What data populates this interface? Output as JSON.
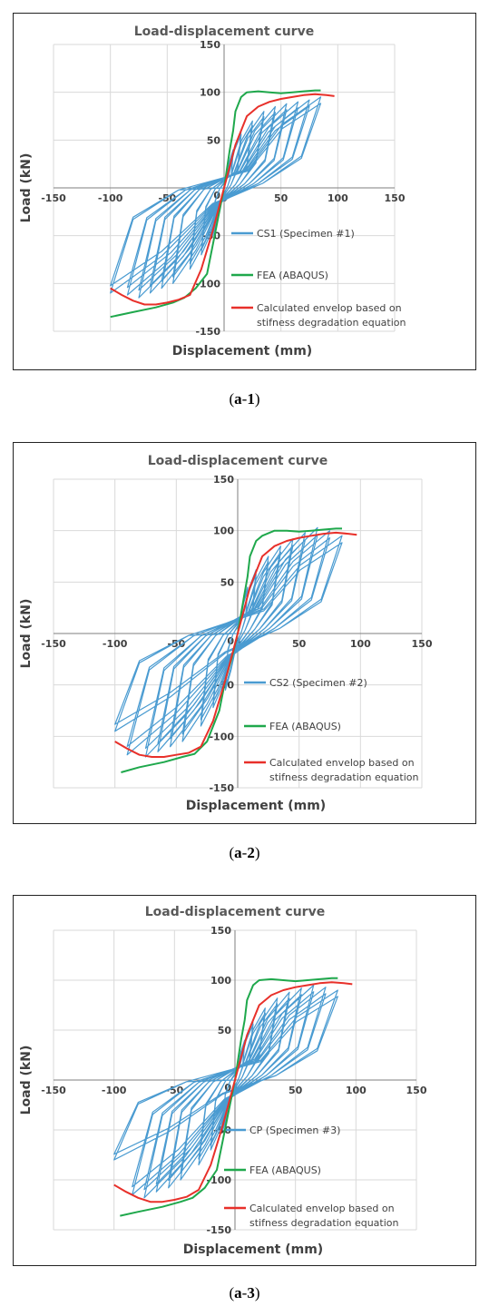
{
  "chart_data": [
    {
      "type": "line",
      "title": "Load-displacement curve",
      "xlabel": "Displacement (mm)",
      "ylabel": "Load (kN)",
      "xlim": [
        -150,
        150
      ],
      "ylim": [
        -150,
        150
      ],
      "xticks": [
        "-150",
        "-100",
        "-50",
        "0",
        "50",
        "100",
        "150"
      ],
      "yticks": [
        "150",
        "100",
        "50",
        "0",
        "-50",
        "-100",
        "-150"
      ],
      "grid": true,
      "legend_position": "right",
      "series": [
        {
          "name": "CS1 (Specimen #1)",
          "color": "#4a9bd1",
          "kind": "hysteresis",
          "amplitudes": [
            8,
            15,
            25,
            35,
            45,
            55,
            65,
            75,
            85
          ],
          "peak_pos": [
            40,
            60,
            70,
            80,
            85,
            88,
            90,
            92,
            95
          ],
          "peak_neg": [
            -50,
            -70,
            -85,
            -100,
            -105,
            -110,
            -115,
            -112,
            -110
          ],
          "neg_amplitudes": [
            -10,
            -20,
            -30,
            -45,
            -55,
            -65,
            -75,
            -85,
            -100
          ],
          "pinch": 0.2
        },
        {
          "name": "FEA (ABAQUS)",
          "color": "#1fa84c",
          "x": [
            -100,
            -80,
            -60,
            -45,
            -35,
            -25,
            -15,
            -10,
            -5,
            0,
            5,
            8,
            10,
            15,
            20,
            30,
            40,
            50,
            60,
            70,
            80,
            85
          ],
          "y": [
            -135,
            -130,
            -125,
            -120,
            -115,
            -105,
            -90,
            -60,
            -30,
            0,
            40,
            60,
            80,
            95,
            100,
            101,
            100,
            99,
            100,
            101,
            102,
            102
          ]
        },
        {
          "name": "Calculated envelop based on stifness degradation equation",
          "color": "#e8302a",
          "x": [
            -100,
            -90,
            -80,
            -70,
            -60,
            -50,
            -40,
            -30,
            -20,
            -10,
            0,
            10,
            20,
            30,
            40,
            50,
            60,
            70,
            80,
            90,
            97
          ],
          "y": [
            -105,
            -112,
            -118,
            -122,
            -122,
            -120,
            -117,
            -112,
            -85,
            -45,
            0,
            45,
            75,
            85,
            90,
            93,
            95,
            97,
            98,
            97,
            96
          ]
        }
      ],
      "caption": "a-1"
    },
    {
      "type": "line",
      "title": "Load-displacement curve",
      "xlabel": "Displacement (mm)",
      "ylabel": "Load (kN)",
      "xlim": [
        -150,
        150
      ],
      "ylim": [
        -150,
        150
      ],
      "xticks": [
        "-150",
        "-100",
        "-50",
        "0",
        "50",
        "100",
        "150"
      ],
      "yticks": [
        "150",
        "100",
        "50",
        "0",
        "-50",
        "-100",
        "-150"
      ],
      "grid": true,
      "legend_position": "right",
      "series": [
        {
          "name": "CS2 (Specimen #2)",
          "color": "#4a9bd1",
          "kind": "hysteresis",
          "amplitudes": [
            8,
            15,
            25,
            35,
            45,
            55,
            65,
            75,
            85
          ],
          "peak_pos": [
            45,
            62,
            75,
            85,
            92,
            98,
            103,
            100,
            95
          ],
          "peak_neg": [
            -55,
            -72,
            -90,
            -105,
            -110,
            -115,
            -120,
            -118,
            -95
          ],
          "neg_amplitudes": [
            -10,
            -20,
            -30,
            -45,
            -55,
            -65,
            -75,
            -90,
            -100
          ],
          "pinch": 0.25
        },
        {
          "name": "FEA (ABAQUS)",
          "color": "#1fa84c",
          "x": [
            -95,
            -80,
            -60,
            -45,
            -35,
            -25,
            -15,
            -10,
            -5,
            0,
            5,
            8,
            10,
            15,
            20,
            30,
            40,
            50,
            60,
            70,
            80,
            85
          ],
          "y": [
            -135,
            -130,
            -125,
            -120,
            -117,
            -105,
            -75,
            -45,
            -25,
            0,
            35,
            55,
            75,
            90,
            95,
            100,
            100,
            99,
            100,
            101,
            102,
            102
          ]
        },
        {
          "name": "Calculated envelop based on stifness degradation equation",
          "color": "#e8302a",
          "x": [
            -100,
            -90,
            -80,
            -70,
            -60,
            -50,
            -40,
            -30,
            -20,
            -10,
            0,
            10,
            20,
            30,
            40,
            50,
            60,
            70,
            80,
            90,
            97
          ],
          "y": [
            -105,
            -112,
            -118,
            -120,
            -120,
            -118,
            -116,
            -110,
            -85,
            -45,
            0,
            45,
            75,
            85,
            90,
            93,
            95,
            97,
            98,
            97,
            96
          ]
        }
      ],
      "caption": "a-2"
    },
    {
      "type": "line",
      "title": "Load-displacement curve",
      "xlabel": "Displacement (mm)",
      "ylabel": "Load (kN)",
      "xlim": [
        -150,
        150
      ],
      "ylim": [
        -150,
        150
      ],
      "xticks": [
        "-150",
        "-100",
        "-50",
        "0",
        "50",
        "100",
        "150"
      ],
      "yticks": [
        "150",
        "100",
        "50",
        "0",
        "-50",
        "-100",
        "-150"
      ],
      "grid": true,
      "legend_position": "right",
      "series": [
        {
          "name": "CP (Specimen #3)",
          "color": "#4a9bd1",
          "kind": "hysteresis",
          "amplitudes": [
            8,
            15,
            25,
            35,
            45,
            55,
            65,
            75,
            85
          ],
          "peak_pos": [
            40,
            60,
            72,
            82,
            88,
            92,
            95,
            93,
            90
          ],
          "peak_neg": [
            -50,
            -70,
            -85,
            -100,
            -108,
            -112,
            -118,
            -115,
            -80
          ],
          "neg_amplitudes": [
            -10,
            -20,
            -30,
            -45,
            -55,
            -65,
            -75,
            -85,
            -100
          ],
          "pinch": 0.22
        },
        {
          "name": "FEA (ABAQUS)",
          "color": "#1fa84c",
          "x": [
            -95,
            -80,
            -60,
            -45,
            -35,
            -25,
            -15,
            -10,
            -5,
            0,
            5,
            8,
            10,
            15,
            20,
            30,
            40,
            50,
            60,
            70,
            80,
            85
          ],
          "y": [
            -136,
            -132,
            -127,
            -122,
            -118,
            -108,
            -90,
            -60,
            -30,
            0,
            40,
            60,
            80,
            95,
            100,
            101,
            100,
            99,
            100,
            101,
            102,
            102
          ]
        },
        {
          "name": "Calculated envelop based on stifness degradation equation",
          "color": "#e8302a",
          "x": [
            -100,
            -90,
            -80,
            -70,
            -60,
            -50,
            -40,
            -30,
            -20,
            -10,
            0,
            10,
            20,
            30,
            40,
            50,
            60,
            70,
            80,
            90,
            97
          ],
          "y": [
            -105,
            -112,
            -118,
            -122,
            -122,
            -120,
            -117,
            -110,
            -85,
            -45,
            0,
            45,
            75,
            85,
            90,
            93,
            95,
            97,
            98,
            97,
            96
          ]
        }
      ],
      "caption": "a-3"
    }
  ],
  "captions": [
    {
      "letter": "a",
      "num": "1"
    },
    {
      "letter": "a",
      "num": "2"
    },
    {
      "letter": "a",
      "num": "3"
    }
  ]
}
